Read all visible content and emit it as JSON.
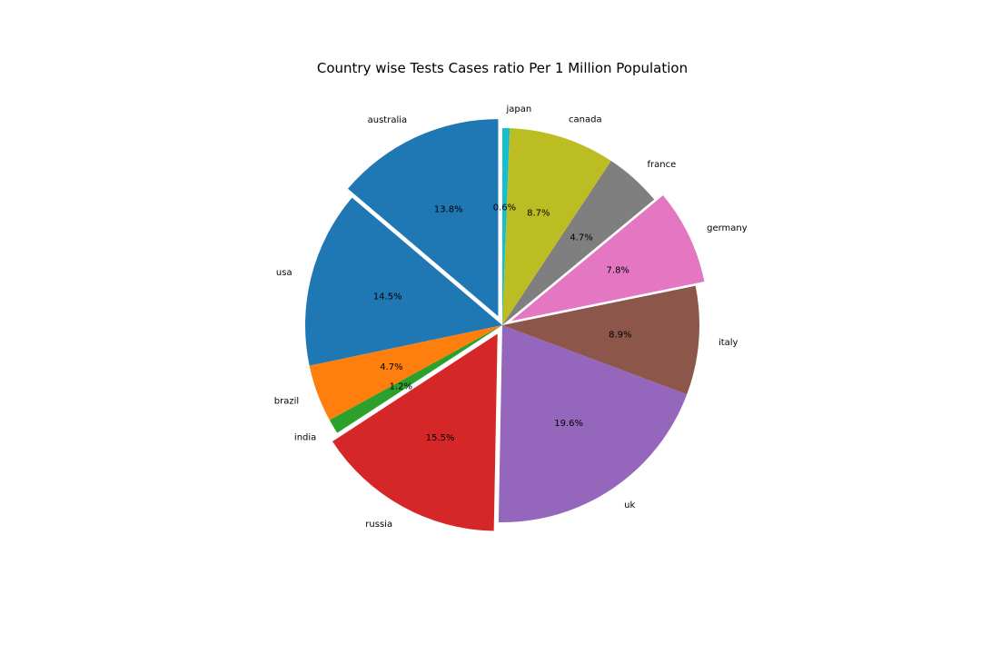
{
  "chart_data": {
    "type": "pie",
    "title": "Country wise Tests Cases ratio Per 1 Million Population",
    "slices": [
      {
        "label": "australia",
        "value": 13.8,
        "pct_text": "13.8%",
        "color": "#1f77b4",
        "exploded": true
      },
      {
        "label": "usa",
        "value": 14.5,
        "pct_text": "14.5%",
        "color": "#1f77b4",
        "exploded": false
      },
      {
        "label": "brazil",
        "value": 4.7,
        "pct_text": "4.7%",
        "color": "#ff7f0e",
        "exploded": false
      },
      {
        "label": "india",
        "value": 1.2,
        "pct_text": "1.2%",
        "color": "#2ca02c",
        "exploded": false
      },
      {
        "label": "russia",
        "value": 15.5,
        "pct_text": "15.5%",
        "color": "#d62728",
        "exploded": true
      },
      {
        "label": "uk",
        "value": 19.6,
        "pct_text": "19.6%",
        "color": "#9467bd",
        "exploded": false
      },
      {
        "label": "italy",
        "value": 8.9,
        "pct_text": "8.9%",
        "color": "#8c564b",
        "exploded": false
      },
      {
        "label": "germany",
        "value": 7.8,
        "pct_text": "7.8%",
        "color": "#e377c2",
        "exploded": true
      },
      {
        "label": "france",
        "value": 4.7,
        "pct_text": "4.7%",
        "color": "#7f7f7f",
        "exploded": false
      },
      {
        "label": "canada",
        "value": 8.7,
        "pct_text": "8.7%",
        "color": "#bcbd22",
        "exploded": false
      },
      {
        "label": "japan",
        "value": 0.6,
        "pct_text": "0.6%",
        "color": "#17becf",
        "exploded": false
      }
    ],
    "start_angle_deg": 90,
    "direction": "counterclockwise",
    "legend": "none"
  }
}
